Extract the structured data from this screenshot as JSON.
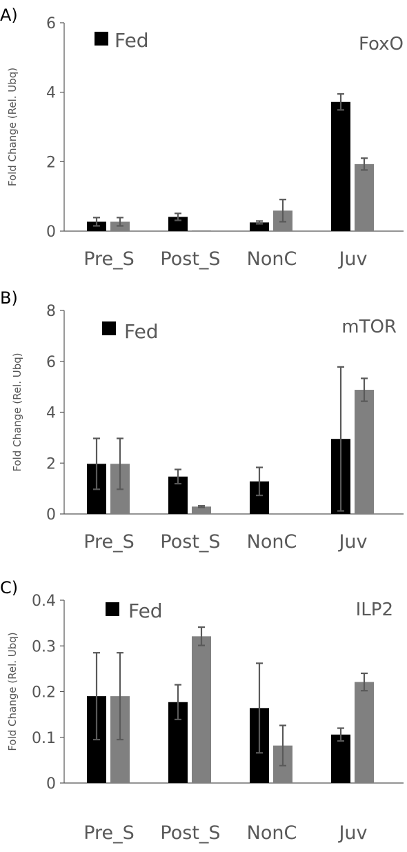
{
  "chart_data": [
    {
      "type": "bar",
      "panel_label": "A)",
      "title": "FoxO",
      "ylabel": "Fold Change (Rel. Ubq)",
      "categories": [
        "Pre_S",
        "Post_S",
        "NonC",
        "Juv"
      ],
      "ylim": [
        0,
        6
      ],
      "yticks": [
        0,
        2,
        4,
        6
      ],
      "ytick_labels": [
        "0",
        "2",
        "4",
        "6"
      ],
      "legend_entry": "Fed",
      "series": [
        {
          "name": "Fed",
          "color": "#000000",
          "values": [
            0.27,
            0.41,
            0.25,
            3.72
          ],
          "errors": [
            0.12,
            0.1,
            0.04,
            0.23
          ]
        },
        {
          "name": "",
          "color": "#808080",
          "values": [
            0.27,
            0.02,
            0.59,
            1.93
          ],
          "errors": [
            0.12,
            0.0,
            0.32,
            0.17
          ]
        }
      ]
    },
    {
      "type": "bar",
      "panel_label": "B)",
      "title": "mTOR",
      "ylabel": "Fold Change (Rel. Ubq)",
      "categories": [
        "Pre_S",
        "Post_S",
        "NonC",
        "Juv"
      ],
      "ylim": [
        0,
        8
      ],
      "yticks": [
        0,
        2,
        4,
        6,
        8
      ],
      "ytick_labels": [
        "0",
        "2",
        "4",
        "6",
        "8"
      ],
      "legend_entry": "Fed",
      "series": [
        {
          "name": "Fed",
          "color": "#000000",
          "values": [
            1.97,
            1.47,
            1.28,
            2.95
          ],
          "errors": [
            1.0,
            0.28,
            0.55,
            2.83
          ]
        },
        {
          "name": "",
          "color": "#808080",
          "values": [
            1.97,
            0.29,
            0.02,
            4.88
          ],
          "errors": [
            1.0,
            0.03,
            0.0,
            0.45
          ]
        }
      ]
    },
    {
      "type": "bar",
      "panel_label": "C)",
      "title": "ILP2",
      "ylabel": "Fold Change (Rel. Ubq)",
      "categories": [
        "Pre_S",
        "Post_S",
        "NonC",
        "Juv"
      ],
      "ylim": [
        0,
        0.4
      ],
      "yticks": [
        0,
        0.1,
        0.2,
        0.3,
        0.4
      ],
      "ytick_labels": [
        "0",
        "0.1",
        "0.2",
        "0.3",
        "0.4"
      ],
      "legend_entry": "Fed",
      "series": [
        {
          "name": "Fed",
          "color": "#000000",
          "values": [
            0.19,
            0.177,
            0.164,
            0.106
          ],
          "errors": [
            0.095,
            0.038,
            0.098,
            0.014
          ]
        },
        {
          "name": "",
          "color": "#808080",
          "values": [
            0.19,
            0.321,
            0.082,
            0.221
          ],
          "errors": [
            0.095,
            0.02,
            0.044,
            0.019
          ]
        }
      ]
    }
  ]
}
